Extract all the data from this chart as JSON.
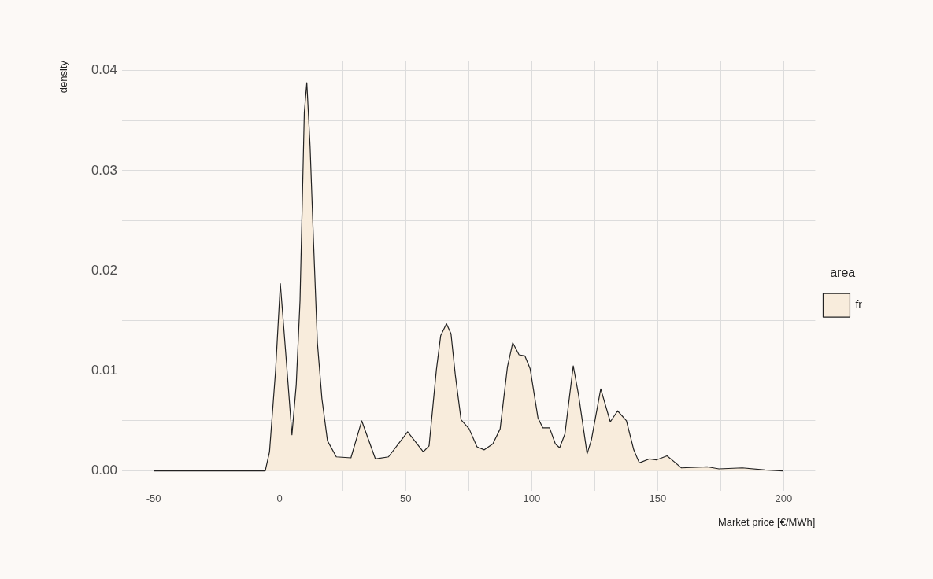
{
  "chart_data": {
    "type": "area",
    "xlabel": "Market price [€/MWh]",
    "ylabel": "density",
    "legend_title": "area",
    "legend": "right",
    "grid": true,
    "marker": "none",
    "xlim": [
      -62.5,
      212.5
    ],
    "ylim": [
      -0.002,
      0.041
    ],
    "xticks": [
      -50,
      {
        "value": -25,
        "label": null
      },
      0,
      {
        "value": 25,
        "label": null
      },
      50,
      {
        "value": 75,
        "label": null
      },
      100,
      {
        "value": 125,
        "label": null
      },
      150,
      {
        "value": 175,
        "label": null
      },
      200
    ],
    "yticks": [
      {
        "value": 0,
        "label": "0.00"
      },
      {
        "value": 0.005,
        "label": null
      },
      {
        "value": 0.01,
        "label": "0.01"
      },
      {
        "value": 0.015,
        "label": null
      },
      {
        "value": 0.02,
        "label": "0.02"
      },
      {
        "value": 0.025,
        "label": null
      },
      {
        "value": 0.03,
        "label": "0.03"
      },
      {
        "value": 0.035,
        "label": null
      },
      {
        "value": 0.04,
        "label": "0.04"
      }
    ],
    "x": [
      -50,
      -5.7,
      -4.0,
      -1.6,
      0.3,
      2.4,
      4.9,
      6.6,
      8.1,
      9.0,
      9.8,
      10.8,
      12.1,
      13.5,
      15.0,
      16.8,
      19.0,
      22.5,
      28.3,
      32.6,
      38.0,
      43.2,
      50.8,
      57.0,
      59.3,
      62.2,
      63.9,
      66.2,
      68.0,
      69.7,
      72.0,
      75.2,
      78.3,
      81.2,
      84.6,
      87.5,
      90.4,
      92.5,
      95.0,
      97.3,
      99.4,
      102.5,
      104.4,
      107.1,
      109.4,
      111.1,
      113.2,
      116.5,
      118.6,
      122.0,
      123.7,
      127.4,
      131.2,
      134.1,
      137.6,
      140.5,
      142.7,
      146.8,
      149.6,
      153.7,
      156.6,
      159.4,
      169.8,
      174.3,
      183.6,
      192.7,
      199.7
    ],
    "series": [
      {
        "name": "fr",
        "color": "#f8ecdc",
        "values": [
          0,
          0,
          0.0019,
          0.01,
          0.0187,
          0.0119,
          0.0036,
          0.0086,
          0.017,
          0.0268,
          0.0358,
          0.0388,
          0.0324,
          0.0226,
          0.0128,
          0.0072,
          0.003,
          0.0014,
          0.0013,
          0.005,
          0.0012,
          0.0014,
          0.0039,
          0.0019,
          0.0025,
          0.0101,
          0.0135,
          0.0147,
          0.0137,
          0.0096,
          0.0051,
          0.0042,
          0.0024,
          0.0021,
          0.0027,
          0.0042,
          0.0104,
          0.0128,
          0.0116,
          0.0115,
          0.0102,
          0.0053,
          0.0043,
          0.0043,
          0.0027,
          0.0023,
          0.0037,
          0.0105,
          0.0076,
          0.0017,
          0.0031,
          0.0082,
          0.0049,
          0.006,
          0.005,
          0.0021,
          0.0008,
          0.0012,
          0.0011,
          0.0015,
          0.0009,
          0.0003,
          0.0004,
          0.0002,
          0.0003,
          0.0001,
          0
        ]
      }
    ]
  }
}
